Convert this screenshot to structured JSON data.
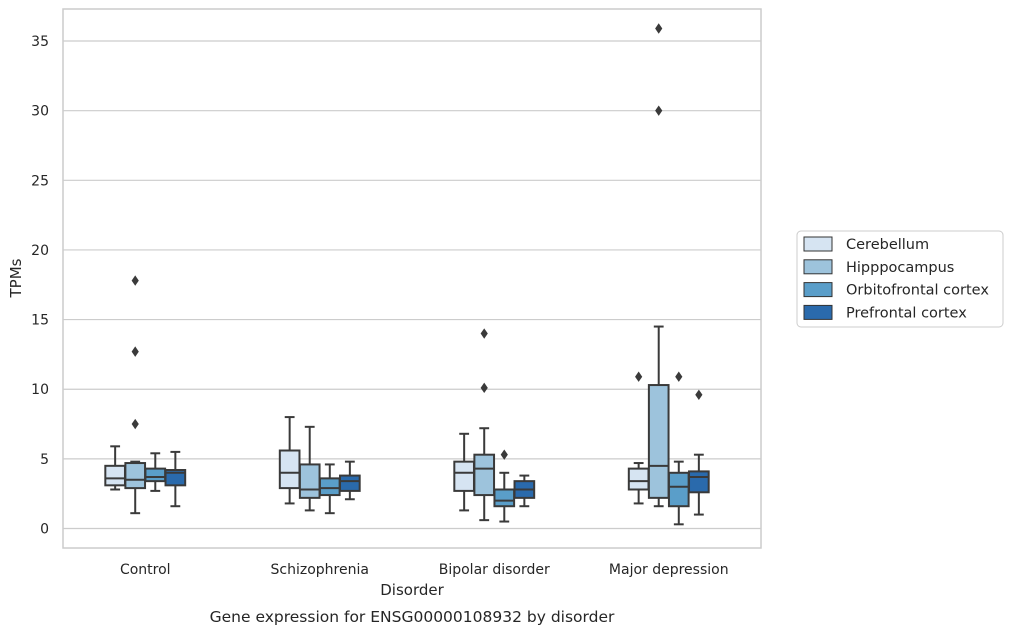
{
  "chart_data": {
    "type": "box",
    "caption": "Gene expression for ENSG00000108932 by disorder",
    "xlabel": "Disorder",
    "ylabel": "TPMs",
    "ylim": [
      -1.4,
      37.3
    ],
    "yticks": [
      0,
      5,
      10,
      15,
      20,
      25,
      30,
      35
    ],
    "grid": "horizontal",
    "legend_position": "right",
    "categories": [
      "Control",
      "Schizophrenia",
      "Bipolar disorder",
      "Major depression"
    ],
    "series": [
      {
        "name": "Cerebellum",
        "color": "#d6e4f2",
        "boxes": [
          {
            "whislo": 2.8,
            "q1": 3.1,
            "med": 3.6,
            "q3": 4.5,
            "whishi": 5.9,
            "fliers": []
          },
          {
            "whislo": 1.8,
            "q1": 2.9,
            "med": 4.0,
            "q3": 5.6,
            "whishi": 8.0,
            "fliers": []
          },
          {
            "whislo": 1.3,
            "q1": 2.7,
            "med": 4.0,
            "q3": 4.8,
            "whishi": 6.8,
            "fliers": []
          },
          {
            "whislo": 1.8,
            "q1": 2.8,
            "med": 3.4,
            "q3": 4.3,
            "whishi": 4.7,
            "fliers": [
              10.9
            ]
          }
        ]
      },
      {
        "name": "Hipppocampus",
        "color": "#9dc3dc",
        "boxes": [
          {
            "whislo": 1.1,
            "q1": 2.9,
            "med": 3.5,
            "q3": 4.7,
            "whishi": 4.8,
            "fliers": [
              7.5,
              12.7,
              17.8
            ]
          },
          {
            "whislo": 1.3,
            "q1": 2.2,
            "med": 2.8,
            "q3": 4.6,
            "whishi": 7.3,
            "fliers": []
          },
          {
            "whislo": 0.6,
            "q1": 2.4,
            "med": 4.3,
            "q3": 5.3,
            "whishi": 7.2,
            "fliers": [
              10.1,
              14.0
            ]
          },
          {
            "whislo": 1.6,
            "q1": 2.2,
            "med": 4.5,
            "q3": 10.3,
            "whishi": 14.5,
            "fliers": [
              30.0,
              35.9
            ]
          }
        ]
      },
      {
        "name": "Orbitofrontal cortex",
        "color": "#5a9ec9",
        "boxes": [
          {
            "whislo": 2.7,
            "q1": 3.4,
            "med": 3.7,
            "q3": 4.3,
            "whishi": 5.4,
            "fliers": []
          },
          {
            "whislo": 1.1,
            "q1": 2.4,
            "med": 2.9,
            "q3": 3.6,
            "whishi": 4.6,
            "fliers": []
          },
          {
            "whislo": 0.5,
            "q1": 1.6,
            "med": 2.0,
            "q3": 2.8,
            "whishi": 4.0,
            "fliers": [
              5.3
            ]
          },
          {
            "whislo": 0.3,
            "q1": 1.6,
            "med": 3.0,
            "q3": 4.0,
            "whishi": 4.8,
            "fliers": [
              10.9
            ]
          }
        ]
      },
      {
        "name": "Prefrontal cortex",
        "color": "#2a6aac",
        "boxes": [
          {
            "whislo": 1.6,
            "q1": 3.1,
            "med": 4.0,
            "q3": 4.2,
            "whishi": 5.5,
            "fliers": []
          },
          {
            "whislo": 2.1,
            "q1": 2.7,
            "med": 3.4,
            "q3": 3.8,
            "whishi": 4.8,
            "fliers": []
          },
          {
            "whislo": 1.6,
            "q1": 2.2,
            "med": 2.8,
            "q3": 3.4,
            "whishi": 3.8,
            "fliers": []
          },
          {
            "whislo": 1.0,
            "q1": 2.6,
            "med": 3.7,
            "q3": 4.1,
            "whishi": 5.3,
            "fliers": [
              9.6
            ]
          }
        ]
      }
    ]
  }
}
